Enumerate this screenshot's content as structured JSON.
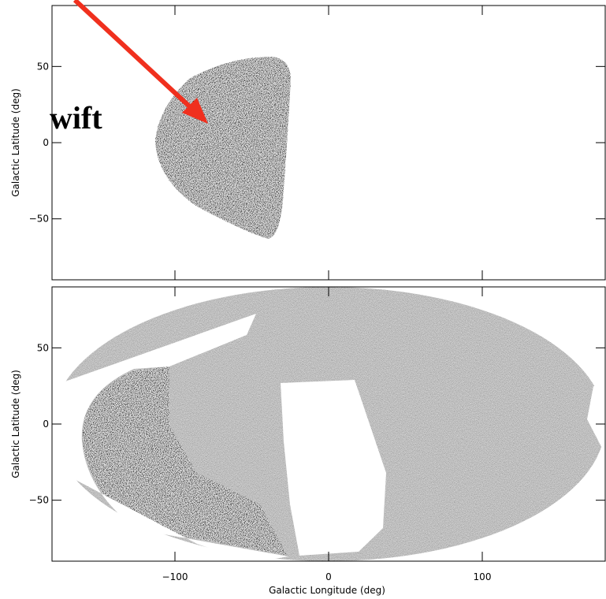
{
  "chart_data": [
    {
      "type": "skymap",
      "ylabel": "Galactic Latitude (deg)",
      "xlim": [
        -180,
        180
      ],
      "ylim": [
        -90,
        90
      ],
      "xticks": [
        -100,
        0,
        100
      ],
      "yticks": [
        50,
        0,
        {
          "value": -50,
          "label": "−50"
        }
      ]
    },
    {
      "type": "skymap",
      "xlabel": "Galactic Longitude (deg)",
      "ylabel": "Galactic Latitude (deg)",
      "xlim": [
        -180,
        180
      ],
      "ylim": [
        -90,
        90
      ],
      "xticks": [
        {
          "value": -100,
          "label": "−100"
        },
        0,
        100
      ],
      "yticks": [
        50,
        0,
        {
          "value": -50,
          "label": "−50"
        }
      ]
    }
  ],
  "annotation": "wift"
}
